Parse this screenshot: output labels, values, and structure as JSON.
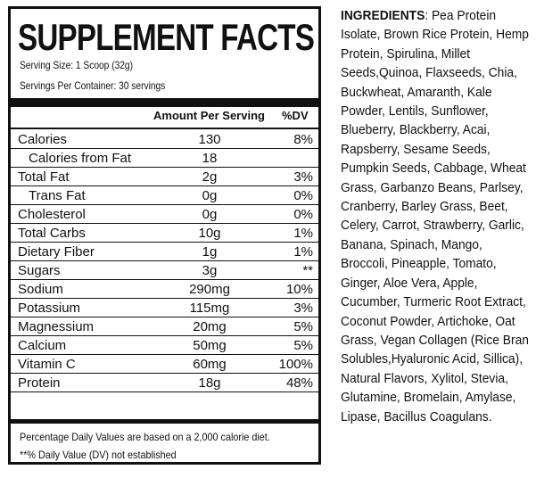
{
  "title": "SUPPLEMENT FACTS",
  "serving_size": "Serving Size: 1 Scoop (32g)",
  "servings_per_container": "Servings Per Container: 30 servings",
  "columns": {
    "amount": "Amount Per Serving",
    "dv": "%DV"
  },
  "nutrients": [
    {
      "name": "Calories",
      "amount": "130",
      "dv": "8%",
      "sub": false
    },
    {
      "name": "Calories from Fat",
      "amount": "18",
      "dv": "",
      "sub": true
    },
    {
      "name": "Total Fat",
      "amount": "2g",
      "dv": "3%",
      "sub": false
    },
    {
      "name": "Trans Fat",
      "amount": "0g",
      "dv": "0%",
      "sub": true
    },
    {
      "name": "Cholesterol",
      "amount": "0g",
      "dv": "0%",
      "sub": false
    },
    {
      "name": "Total Carbs",
      "amount": "10g",
      "dv": "1%",
      "sub": false
    },
    {
      "name": "Dietary Fiber",
      "amount": "1g",
      "dv": "1%",
      "sub": false
    },
    {
      "name": "Sugars",
      "amount": "3g",
      "dv": "**",
      "sub": false
    },
    {
      "name": "Sodium",
      "amount": "290mg",
      "dv": "10%",
      "sub": false
    },
    {
      "name": "Potassium",
      "amount": "115mg",
      "dv": "3%",
      "sub": false
    },
    {
      "name": "Magnessium",
      "amount": "20mg",
      "dv": "5%",
      "sub": false
    },
    {
      "name": "Calcium",
      "amount": "50mg",
      "dv": "5%",
      "sub": false
    },
    {
      "name": "Vitamin C",
      "amount": "60mg",
      "dv": "100%",
      "sub": false
    },
    {
      "name": "Protein",
      "amount": "18g",
      "dv": "48%",
      "sub": false
    }
  ],
  "footnote_1": "Percentage Daily Values are based on a 2,000 calorie diet.",
  "footnote_2": "**% Daily Value (DV) not established",
  "ingredients": {
    "label": "INGREDIENTS",
    "text": ": Pea Protein Isolate, Brown Rice Protein, Hemp Protein, Spirulina, Millet Seeds,Quinoa, Flaxseeds, Chia, Buckwheat, Amaranth, Kale Powder, Lentils, Sunflower, Blueberry, Blackberry, Acai, Rapsberry, Sesame Seeds, Pumpkin Seeds, Cabbage, Wheat Grass, Garbanzo Beans, Parlsey, Cranberry, Barley Grass, Beet, Celery, Carrot, Strawberry, Garlic, Banana, Spinach, Mango, Broccoli, Pineapple, Tomato, Ginger, Aloe Vera, Apple, Cucumber, Turmeric Root Extract, Coconut Powder, Artichoke, Oat Grass, Vegan Collagen (Rice Bran Solubles,Hyaluronic Acid, Sillica), Natural Flavors, Xylitol, Stevia, Glutamine, Bromelain, Amylase, Lipase, Bacillus Coagulans."
  }
}
